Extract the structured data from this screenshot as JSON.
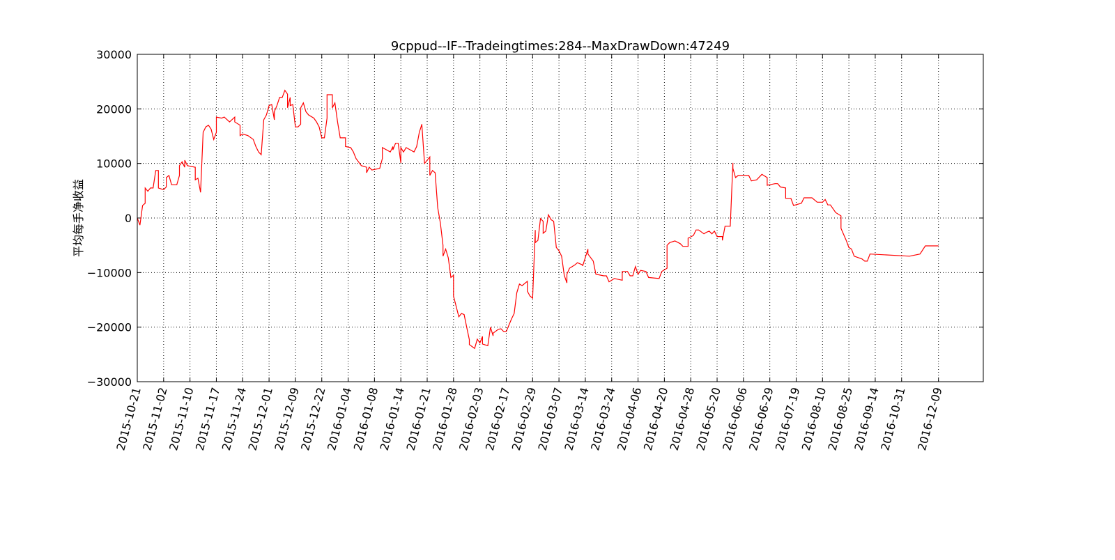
{
  "chart_data": {
    "type": "line",
    "title": "9cppud--IF--Tradeingtimes:284--MaxDrawDown:47249",
    "y_label": "平均每手净收益",
    "grid": true,
    "xlim": [
      0,
      321
    ],
    "ylim": [
      -30000,
      30000
    ],
    "yticks": [
      {
        "value": -30000,
        "label": "−30000"
      },
      {
        "value": -20000,
        "label": "−20000"
      },
      {
        "value": -10000,
        "label": "−10000"
      },
      0,
      10000,
      20000,
      30000
    ],
    "xticks": [
      {
        "value": 0,
        "label": "2015-10-21"
      },
      {
        "value": 10,
        "label": "2015-11-02"
      },
      {
        "value": 20,
        "label": "2015-11-10"
      },
      {
        "value": 30,
        "label": "2015-11-17"
      },
      {
        "value": 40,
        "label": "2015-11-24"
      },
      {
        "value": 50,
        "label": "2015-12-01"
      },
      {
        "value": 60,
        "label": "2015-12-09"
      },
      {
        "value": 70,
        "label": "2015-12-22"
      },
      {
        "value": 80,
        "label": "2016-01-04"
      },
      {
        "value": 90,
        "label": "2016-01-08"
      },
      {
        "value": 100,
        "label": "2016-01-14"
      },
      {
        "value": 110,
        "label": "2016-01-21"
      },
      {
        "value": 120,
        "label": "2016-01-28"
      },
      {
        "value": 130,
        "label": "2016-02-03"
      },
      {
        "value": 140,
        "label": "2016-02-17"
      },
      {
        "value": 150,
        "label": "2016-02-29"
      },
      {
        "value": 160,
        "label": "2016-03-07"
      },
      {
        "value": 170,
        "label": "2016-03-14"
      },
      {
        "value": 180,
        "label": "2016-03-24"
      },
      {
        "value": 190,
        "label": "2016-04-06"
      },
      {
        "value": 200,
        "label": "2016-04-20"
      },
      {
        "value": 210,
        "label": "2016-04-28"
      },
      {
        "value": 220,
        "label": "2016-05-20"
      },
      {
        "value": 230,
        "label": "2016-06-06"
      },
      {
        "value": 240,
        "label": "2016-06-29"
      },
      {
        "value": 250,
        "label": "2016-07-19"
      },
      {
        "value": 260,
        "label": "2016-08-10"
      },
      {
        "value": 270,
        "label": "2016-08-25"
      },
      {
        "value": 280,
        "label": "2016-09-14"
      },
      {
        "value": 290,
        "label": "2016-10-31"
      },
      {
        "value": 304,
        "label": "2016-12-09"
      }
    ],
    "x": [
      0,
      1,
      2,
      3,
      3,
      4,
      5,
      6,
      7,
      8,
      8,
      10,
      11,
      11,
      12,
      13,
      15,
      16,
      16,
      17,
      18,
      18,
      19,
      22,
      22,
      23,
      24,
      25,
      26,
      27,
      28,
      29,
      30,
      30,
      32,
      33,
      35,
      37,
      37,
      39,
      39,
      40,
      42,
      44,
      45,
      46,
      47,
      48,
      49,
      50,
      51,
      52,
      52,
      53,
      54,
      55,
      56,
      57,
      57,
      58,
      58,
      59,
      60,
      61,
      62,
      62,
      63,
      64,
      65,
      67,
      68,
      69,
      70,
      71,
      72,
      72,
      74,
      74,
      75,
      76,
      77,
      79,
      79,
      81,
      82,
      83,
      85,
      87,
      87,
      88,
      89,
      92,
      93,
      93,
      96,
      97,
      97,
      98,
      99,
      100,
      100,
      101,
      102,
      105,
      106,
      107,
      108,
      108,
      109,
      111,
      111,
      112,
      113,
      114,
      115,
      116,
      116,
      117,
      118,
      119,
      120,
      120,
      122,
      123,
      124,
      125,
      126,
      126,
      128,
      129,
      130,
      131,
      131,
      133,
      134,
      135,
      135,
      137,
      138,
      139,
      140,
      142,
      143,
      144,
      145,
      146,
      148,
      148,
      149,
      150,
      151,
      151,
      152,
      153,
      154,
      154,
      155,
      156,
      157,
      158,
      159,
      160,
      161,
      162,
      163,
      163,
      164,
      166,
      167,
      169,
      169,
      171,
      171,
      173,
      174,
      177,
      178,
      179,
      181,
      184,
      184,
      186,
      187,
      188,
      189,
      190,
      191,
      193,
      194,
      198,
      199,
      201,
      201,
      202,
      204,
      206,
      207,
      209,
      209,
      211,
      212,
      213,
      215,
      216,
      217,
      218,
      219,
      220,
      222,
      222,
      223,
      225,
      226,
      226,
      227,
      228,
      232,
      233,
      235,
      237,
      239,
      239,
      242,
      243,
      244,
      246,
      246,
      248,
      249,
      252,
      253,
      256,
      258,
      260,
      261,
      262,
      263,
      264,
      265,
      267,
      267,
      269,
      270,
      271,
      272,
      275,
      276,
      277,
      278,
      293,
      297,
      299,
      304
    ],
    "series": [
      {
        "color": "#ff0000",
        "values": [
          0,
          -1300,
          2300,
          2700,
          5500,
          4900,
          5500,
          5500,
          8700,
          8700,
          5500,
          5200,
          5700,
          7400,
          7800,
          6100,
          6100,
          7800,
          9600,
          10300,
          9300,
          10600,
          9600,
          9300,
          7000,
          7300,
          4700,
          15700,
          16700,
          17000,
          16300,
          14400,
          15700,
          18500,
          18300,
          18500,
          17600,
          18500,
          17600,
          17000,
          15100,
          15400,
          15100,
          14400,
          13100,
          12100,
          11600,
          18000,
          18900,
          20600,
          20800,
          18000,
          19500,
          20600,
          22100,
          22100,
          23400,
          22700,
          20200,
          22100,
          20600,
          20800,
          16700,
          16700,
          17200,
          20200,
          21100,
          19500,
          18900,
          18300,
          17600,
          16700,
          14700,
          14700,
          18300,
          22600,
          22600,
          20200,
          21100,
          17600,
          14700,
          14700,
          13100,
          12900,
          12100,
          10900,
          9600,
          9300,
          8300,
          9300,
          8800,
          9100,
          10900,
          12900,
          12100,
          13100,
          12500,
          13700,
          13700,
          10100,
          12900,
          12100,
          12900,
          12100,
          13100,
          15700,
          17200,
          17000,
          10000,
          11200,
          7800,
          8700,
          8300,
          1900,
          -900,
          -5000,
          -7000,
          -5700,
          -7300,
          -10900,
          -10500,
          -14300,
          -18100,
          -17500,
          -17700,
          -20000,
          -22300,
          -23200,
          -23900,
          -22200,
          -22900,
          -21700,
          -23100,
          -23400,
          -20000,
          -21600,
          -21100,
          -20400,
          -20300,
          -20800,
          -20800,
          -18500,
          -17500,
          -13700,
          -12100,
          -12400,
          -11600,
          -13400,
          -14300,
          -14700,
          -2200,
          -4500,
          -4100,
          -100,
          -600,
          -2800,
          -2400,
          600,
          -300,
          -600,
          -5400,
          -6000,
          -7000,
          -10500,
          -11900,
          -10300,
          -9200,
          -8600,
          -8200,
          -8600,
          -8800,
          -5700,
          -6600,
          -7900,
          -10300,
          -10600,
          -10600,
          -11700,
          -11100,
          -11400,
          -9800,
          -9800,
          -10600,
          -10600,
          -8900,
          -10300,
          -9600,
          -9800,
          -10900,
          -11100,
          -9800,
          -9200,
          -5000,
          -4500,
          -4200,
          -4700,
          -5200,
          -5200,
          -3700,
          -3200,
          -2200,
          -2200,
          -2900,
          -2600,
          -2400,
          -2900,
          -2400,
          -3400,
          -3400,
          -4100,
          -1500,
          -1500,
          10100,
          9100,
          7400,
          7800,
          7800,
          6800,
          7000,
          8000,
          7400,
          6000,
          6300,
          6300,
          5700,
          5500,
          3600,
          3600,
          2300,
          2700,
          3700,
          3700,
          2900,
          2900,
          3400,
          2400,
          2400,
          1700,
          1000,
          400,
          -1900,
          -4100,
          -5400,
          -5700,
          -7000,
          -7500,
          -7900,
          -7900,
          -6600,
          -7000,
          -6600,
          -5100,
          -5100
        ]
      }
    ]
  }
}
